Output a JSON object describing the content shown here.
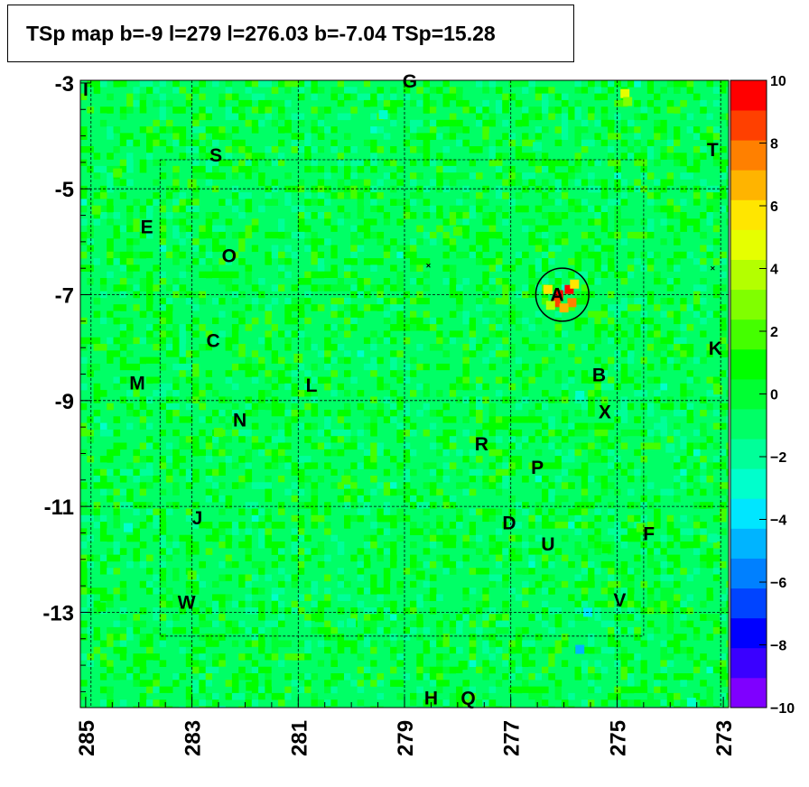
{
  "title": "TSp map b=-9 l=279 l=276.03 b=-7.04 TSp=15.28",
  "chart_data": {
    "type": "heatmap",
    "title": "TSp map b=-9 l=279 l=276.03 b=-7.04 TSp=15.28",
    "xlabel": "",
    "ylabel": "",
    "xlim": [
      285.1,
      272.9
    ],
    "ylim": [
      -14.8,
      -2.95
    ],
    "x_ticks": [
      "285",
      "283",
      "281",
      "279",
      "277",
      "275",
      "273"
    ],
    "y_ticks": [
      "-3",
      "-5",
      "-7",
      "-9",
      "-11",
      "-13"
    ],
    "colorbar": {
      "min": -10,
      "max": 10,
      "ticks": [
        "10",
        "8",
        "6",
        "4",
        "2",
        "0",
        "−2",
        "−4",
        "−6",
        "−8",
        "−10"
      ],
      "colors": [
        "#7f00ff",
        "#3a00ff",
        "#0000ff",
        "#0044ff",
        "#0080ff",
        "#00b4ff",
        "#00e6ff",
        "#00ffcc",
        "#00ff99",
        "#00ff66",
        "#00ff33",
        "#00ff00",
        "#44ff00",
        "#80ff00",
        "#b4ff00",
        "#e6ff00",
        "#ffe600",
        "#ffb400",
        "#ff8000",
        "#ff4000",
        "#ff0000"
      ]
    },
    "background_value": -0.6,
    "peak": {
      "l": 276.03,
      "b": -7.04,
      "value": 15.28
    },
    "hotspots": [
      {
        "l": 276.1,
        "b": -7.0,
        "value": 10
      },
      {
        "l": 275.9,
        "b": -6.9,
        "value": 10
      },
      {
        "l": 276.15,
        "b": -7.15,
        "value": 9
      },
      {
        "l": 275.85,
        "b": -7.15,
        "value": 8
      },
      {
        "l": 276.3,
        "b": -6.9,
        "value": 6
      },
      {
        "l": 275.8,
        "b": -6.8,
        "value": 6
      },
      {
        "l": 276.0,
        "b": -7.25,
        "value": 7
      },
      {
        "l": 276.25,
        "b": -7.2,
        "value": 4
      },
      {
        "l": 274.85,
        "b": -3.2,
        "value": 5
      },
      {
        "l": 274.8,
        "b": -3.35,
        "value": 3
      },
      {
        "l": 278.0,
        "b": -5.8,
        "value": 2
      },
      {
        "l": 284.4,
        "b": -4.7,
        "value": 2
      },
      {
        "l": 283.0,
        "b": -4.9,
        "value": 2
      },
      {
        "l": 281.0,
        "b": -8.2,
        "value": 2
      },
      {
        "l": 280.1,
        "b": -10.5,
        "value": 2
      },
      {
        "l": 282.5,
        "b": -9.6,
        "value": 2
      },
      {
        "l": 284.8,
        "b": -5.4,
        "value": 2
      },
      {
        "l": 273.1,
        "b": -8.8,
        "value": 2
      },
      {
        "l": 274.55,
        "b": -11.4,
        "value": 2
      },
      {
        "l": 283.0,
        "b": -12.3,
        "value": 2
      },
      {
        "l": 284.7,
        "b": -12.9,
        "value": 1
      },
      {
        "l": 275.2,
        "b": -11.8,
        "value": 1
      },
      {
        "l": 281.9,
        "b": -14.4,
        "value": 1
      },
      {
        "l": 280.6,
        "b": -13.1,
        "value": 1
      },
      {
        "l": 278.7,
        "b": -12.3,
        "value": 1
      },
      {
        "l": 277.9,
        "b": -14.0,
        "value": 1
      },
      {
        "l": 275.7,
        "b": -8.9,
        "value": -3
      },
      {
        "l": 275.55,
        "b": -13.0,
        "value": -4
      },
      {
        "l": 275.7,
        "b": -13.7,
        "value": -5
      },
      {
        "l": 284.2,
        "b": -11.4,
        "value": -3
      },
      {
        "l": 279.4,
        "b": -3.6,
        "value": -3
      },
      {
        "l": 276.5,
        "b": -4.2,
        "value": -2
      },
      {
        "l": 273.2,
        "b": -11.6,
        "value": -2
      },
      {
        "l": 274.0,
        "b": -9.9,
        "value": -2
      },
      {
        "l": 280.0,
        "b": -13.2,
        "value": -2
      },
      {
        "l": 273.6,
        "b": -14.7,
        "value": -3
      }
    ],
    "circle": {
      "l": 276.03,
      "b": -7.0,
      "radius_deg": 0.5
    },
    "cross_markers": [
      {
        "l": 278.55,
        "b": -6.45
      },
      {
        "l": 273.2,
        "b": -6.5
      }
    ],
    "grid": {
      "l_lines": [
        283,
        281,
        279,
        277,
        275
      ],
      "b_lines": [
        -5,
        -7,
        -9,
        -11,
        -13
      ]
    },
    "source_labels": [
      {
        "text": "A",
        "l": 276.13,
        "b": -6.98
      },
      {
        "text": "B",
        "l": 275.34,
        "b": -8.5
      },
      {
        "text": "C",
        "l": 282.6,
        "b": -7.85
      },
      {
        "text": "D",
        "l": 277.03,
        "b": -11.3
      },
      {
        "text": "E",
        "l": 283.85,
        "b": -5.7
      },
      {
        "text": "F",
        "l": 274.4,
        "b": -11.5
      },
      {
        "text": "G",
        "l": 278.9,
        "b": -2.95
      },
      {
        "text": "H",
        "l": 278.5,
        "b": -14.6
      },
      {
        "text": "I",
        "l": 285.0,
        "b": -3.1
      },
      {
        "text": "J",
        "l": 282.9,
        "b": -11.2
      },
      {
        "text": "K",
        "l": 273.15,
        "b": -8.0
      },
      {
        "text": "L",
        "l": 280.75,
        "b": -8.7
      },
      {
        "text": "M",
        "l": 284.03,
        "b": -8.65
      },
      {
        "text": "N",
        "l": 282.1,
        "b": -9.35
      },
      {
        "text": "O",
        "l": 282.3,
        "b": -6.25
      },
      {
        "text": "P",
        "l": 276.5,
        "b": -10.25
      },
      {
        "text": "Q",
        "l": 277.8,
        "b": -14.6
      },
      {
        "text": "R",
        "l": 277.55,
        "b": -9.8
      },
      {
        "text": "S",
        "l": 282.55,
        "b": -4.35
      },
      {
        "text": "T",
        "l": 273.2,
        "b": -4.25
      },
      {
        "text": "U",
        "l": 276.3,
        "b": -11.7
      },
      {
        "text": "V",
        "l": 274.95,
        "b": -12.75
      },
      {
        "text": "W",
        "l": 283.1,
        "b": -12.8
      },
      {
        "text": "X",
        "l": 275.23,
        "b": -9.2
      }
    ]
  }
}
